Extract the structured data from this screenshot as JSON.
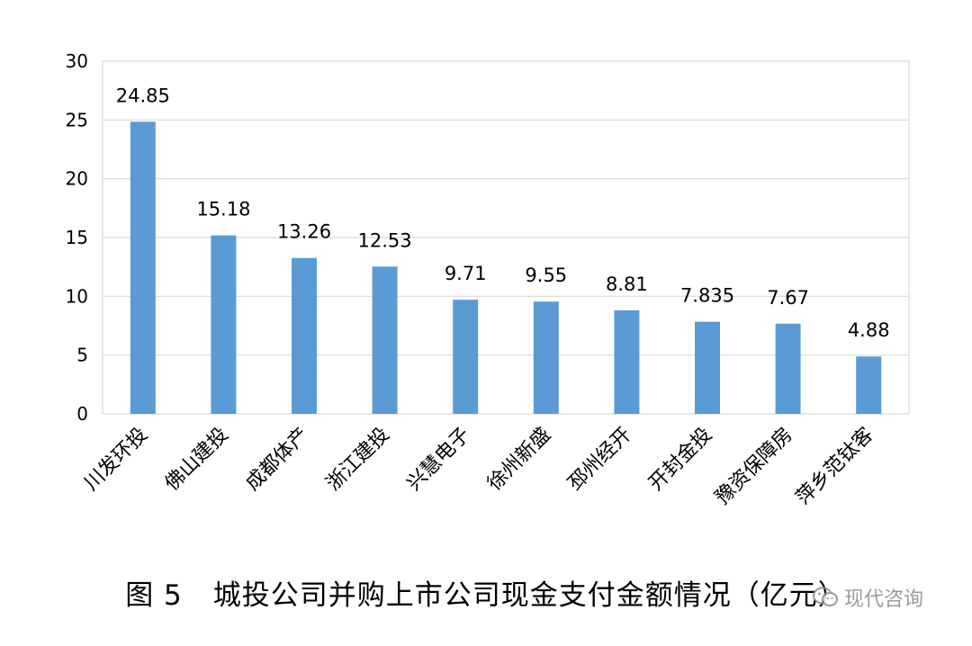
{
  "chart_data": {
    "type": "bar",
    "categories": [
      "川发环投",
      "佛山建投",
      "成都体产",
      "浙江建投",
      "兴慧电子",
      "徐州新盛",
      "邳州经开",
      "开封金投",
      "豫资保障房",
      "萍乡范钛客"
    ],
    "values": [
      24.85,
      15.18,
      13.26,
      12.53,
      9.71,
      9.55,
      8.81,
      7.835,
      7.67,
      4.88
    ],
    "value_labels": [
      "24.85",
      "15.18",
      "13.26",
      "12.53",
      "9.71",
      "9.55",
      "8.81",
      "7.835",
      "7.67",
      "4.88"
    ],
    "ylim": [
      0,
      30
    ],
    "yticks": [
      "0",
      "5",
      "10",
      "15",
      "20",
      "25",
      "30"
    ],
    "grid": true,
    "bar_color": "#5b9bd5",
    "grid_color": "#d9d9d9"
  },
  "caption": {
    "fig_num": "图 5",
    "text": "城投公司并购上市公司现金支付金额情况（亿元）"
  },
  "watermark": {
    "text": "现代咨询",
    "icon": "wechat-icon"
  }
}
